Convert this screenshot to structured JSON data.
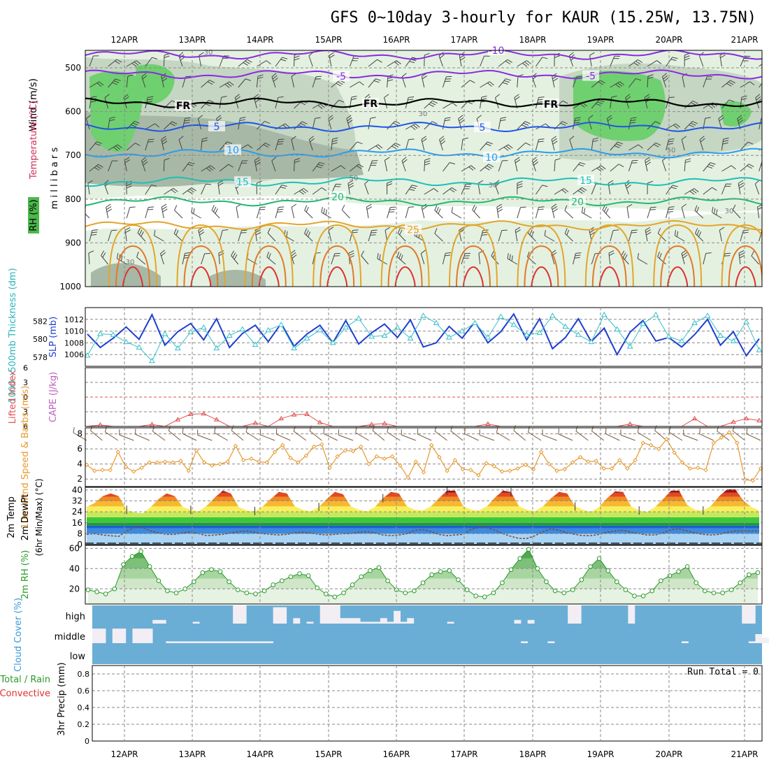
{
  "title": "GFS 0~10day 3-hourly for KAUR (15.25W, 13.75N)",
  "dates": [
    "12APR",
    "13APR",
    "14APR",
    "15APR",
    "16APR",
    "17APR",
    "18APR",
    "19APR",
    "20APR",
    "21APR"
  ],
  "colors": {
    "rh_light": "#e4f1e0",
    "rh_mid": "#c5d6c3",
    "rh_gray": "#a8b8a6",
    "rh_green": "#6fd06f",
    "t_purple": "#8a2be2",
    "t_fr": "#000000",
    "t_5": "#1f55e6",
    "t_10": "#2a9df0",
    "t_15": "#1cc0b8",
    "t_20": "#22b870",
    "t_25": "#e3a52b",
    "t_30": "#e07a28",
    "t_35": "#e03030",
    "slp": "#1f3fcf",
    "thickness": "#33c0c8",
    "lifted": "#e05050",
    "cape": "#c060c0",
    "wind10m": "#e8992e",
    "rh2m": "#2a9a2a",
    "cloud_bg": "#6aaed6",
    "cloud_bar": "#f2eef4"
  },
  "chart_data": [
    {
      "type": "heatmap",
      "name": "upper_air",
      "ylabel_wind": "Wind (m/s)",
      "ylabel_temp": "Temperature (°C)",
      "ylabel_rh": "RH (%)",
      "ylabel_pressure": "m i l l i b a r s",
      "yticks": [
        500,
        600,
        700,
        800,
        900,
        1000
      ],
      "ylim": [
        460,
        1000
      ],
      "isotherms": [
        {
          "label": "-10",
          "level": 470
        },
        {
          "label": "-5",
          "level": 515
        },
        {
          "label": "FR",
          "level": 580
        },
        {
          "label": "5",
          "level": 635
        },
        {
          "label": "10",
          "level": 695
        },
        {
          "label": "15",
          "level": 760
        },
        {
          "label": "20",
          "level": 805
        },
        {
          "label": "25",
          "level": 860
        }
      ],
      "rh_labels": [
        "30",
        "50"
      ]
    },
    {
      "type": "line",
      "name": "slp_thickness",
      "ylabel_slp": "SLP (mb)",
      "ylabel_thickness": "1000~500mb Thickness (dm)",
      "slp_ticks": [
        1006,
        1008,
        1010,
        1012
      ],
      "slp_ylim": [
        1004,
        1014
      ],
      "thickness_ticks": [
        578,
        580,
        582
      ],
      "thickness_ylim": [
        577,
        583.5
      ],
      "slp": [
        1009.5,
        1007.2,
        1008.8,
        1010.7,
        1008.6,
        1012.8,
        1007.6,
        1009.9,
        1011.3,
        1008.5,
        1012.1,
        1007.2,
        1009.6,
        1011.0,
        1008.2,
        1011.3,
        1007.4,
        1009.5,
        1011.0,
        1008.0,
        1011.8,
        1007.8,
        1009.7,
        1011.2,
        1008.9,
        1011.9,
        1007.3,
        1008.0,
        1010.8,
        1008.8,
        1011.6,
        1008.0,
        1009.9,
        1012.9,
        1008.5,
        1012.1,
        1007.0,
        1008.9,
        1012.1,
        1008.2,
        1010.5,
        1006.0,
        1009.8,
        1011.8,
        1008.3,
        1008.9,
        1007.3,
        1009.4,
        1012.0,
        1007.6,
        1009.9,
        1005.8,
        1008.7
      ],
      "thickness": [
        578.2,
        580.6,
        580.5,
        579.7,
        579.1,
        577.6,
        580.6,
        579.0,
        580.8,
        581.3,
        579.0,
        580.4,
        581.1,
        579.4,
        581.0,
        581.6,
        579.0,
        580.1,
        581.0,
        579.6,
        581.3,
        582.3,
        580.3,
        580.4,
        581.3,
        580.1,
        582.6,
        581.8,
        580.2,
        580.9,
        581.8,
        580.2,
        582.5,
        581.6,
        580.5,
        580.7,
        582.6,
        581.4,
        580.5,
        579.7,
        582.7,
        581.1,
        579.2,
        581.7,
        582.7,
        580.3,
        579.8,
        581.8,
        582.6,
        580.4,
        579.8,
        581.9,
        578.8
      ]
    },
    {
      "type": "line",
      "name": "lifted_cape",
      "ylabel_li": "Lifted Index",
      "ylabel_cape": "CAPE (J/kg)",
      "yticks": [
        -6,
        -3,
        0,
        3,
        6
      ],
      "ylim": [
        -6,
        6
      ],
      "lifted_index": [
        6.0,
        5.7,
        6.0,
        6.0,
        6.0,
        5.6,
        6.0,
        4.6,
        3.5,
        3.4,
        4.6,
        6.0,
        6.0,
        5.3,
        6.0,
        4.4,
        3.6,
        3.5,
        5.2,
        6.0,
        6.0,
        6.0,
        5.6,
        5.4,
        6.0,
        6.0,
        6.0,
        6.0,
        6.0,
        6.0,
        6.0,
        5.5,
        6.0,
        6.0,
        6.0,
        6.0,
        6.0,
        6.0,
        6.0,
        6.0,
        6.0,
        6.0,
        5.5,
        6.0,
        6.0,
        6.0,
        6.0,
        4.4,
        6.0,
        6.0,
        5.1,
        4.4,
        4.8
      ]
    },
    {
      "type": "line",
      "name": "wind10m",
      "ylabel": "10m Wind Speed & Barbs (m/s)",
      "yticks": [
        2,
        4,
        6,
        8
      ],
      "ylim": [
        1,
        8.8
      ],
      "values": [
        3.9,
        3.1,
        3.2,
        3.2,
        5.6,
        3.6,
        3.0,
        3.5,
        4.2,
        4.2,
        4.3,
        4.2,
        4.4,
        3.1,
        5.8,
        4.2,
        3.8,
        4.0,
        4.3,
        6.4,
        4.5,
        4.7,
        4.3,
        4.2,
        5.6,
        6.5,
        4.8,
        4.2,
        5.1,
        6.3,
        6.6,
        3.5,
        5.0,
        5.8,
        5.7,
        6.3,
        4.0,
        5.0,
        4.7,
        5.0,
        3.8,
        2.2,
        4.3,
        2.9,
        6.5,
        4.9,
        3.1,
        4.5,
        3.3,
        3.2,
        2.5,
        4.1,
        3.7,
        3.0,
        3.1,
        3.4,
        3.9,
        3.3,
        5.6,
        4.0,
        3.1,
        3.3,
        4.2,
        4.9,
        4.3,
        4.4,
        3.4,
        3.4,
        4.5,
        3.4,
        4.5,
        6.8,
        6.5,
        6.0,
        7.3,
        5.5,
        4.2,
        3.4,
        3.5,
        3.2,
        6.8,
        7.5,
        8.2,
        6.8,
        1.9,
        1.8,
        3.4
      ]
    },
    {
      "type": "area",
      "name": "temp2m",
      "ylabel_temp": "2m Temp",
      "ylabel_dewpt": "2m DewPt",
      "ylabel_minmax": "(6hr Min/Max) (°C)",
      "yticks": [
        0,
        8,
        16,
        24,
        32,
        40
      ],
      "ylim": [
        0,
        42
      ],
      "temp": [
        27.5,
        30.5,
        35.5,
        37.5,
        35.5,
        25.5,
        23.5,
        23.0,
        27.5,
        33.5,
        37.5,
        35.5,
        27.5,
        25.5,
        24.5,
        28.5,
        34.5,
        39.5,
        37.5,
        27.5,
        25.0,
        24.5,
        28.0,
        33.5,
        38.5,
        37.5,
        28.0,
        25.5,
        24.5,
        27.5,
        33.5,
        38.5,
        37.0,
        28.0,
        25.5,
        24.5,
        27.5,
        34.0,
        38.5,
        37.5,
        28.0,
        25.5,
        25.0,
        28.0,
        34.0,
        39.5,
        39.5,
        28.5,
        25.5,
        25.0,
        28.0,
        34.5,
        39.5,
        38.5,
        28.0,
        25.5,
        24.5,
        28.0,
        34.0,
        38.5,
        37.5,
        28.0,
        25.5,
        24.0,
        27.5,
        34.0,
        39.0,
        38.5,
        28.0,
        25.0,
        24.0,
        27.5,
        33.5,
        39.5,
        39.5,
        29.0,
        25.5,
        25.0,
        28.5,
        35.5,
        40.5,
        40.5,
        32.5,
        27.5,
        25.0
      ],
      "dewpt": [
        7.5,
        8.0,
        7.0,
        6.5,
        6.0,
        10.0,
        12.5,
        12.5,
        10.0,
        8.5,
        7.5,
        7.5,
        8.5,
        9.5,
        8.0,
        6.5,
        7.0,
        7.5,
        8.5,
        9.5,
        10.0,
        9.0,
        8.0,
        7.5,
        7.0,
        7.5,
        8.5,
        9.0,
        8.5,
        7.5,
        7.0,
        7.5,
        8.0,
        8.0,
        9.0,
        9.5,
        8.5,
        7.0,
        6.5,
        7.0,
        8.0,
        10.5,
        11.0,
        9.5,
        7.5,
        6.5,
        7.0,
        7.5,
        11.0,
        12.5,
        12.5,
        10.5,
        8.0,
        6.0,
        4.5,
        4.5,
        6.5,
        9.5,
        11.5,
        10.5,
        8.5,
        7.5,
        6.5,
        6.5,
        7.5,
        9.0,
        10.0,
        10.5,
        9.0,
        8.0,
        7.0,
        7.0,
        8.5,
        11.0,
        11.5,
        10.0,
        8.5,
        7.5,
        7.0,
        7.5,
        9.0,
        10.0,
        10.0,
        10.0,
        10.0
      ]
    },
    {
      "type": "area",
      "name": "rh2m",
      "ylabel": "2m RH (%)",
      "yticks": [
        20,
        40,
        60
      ],
      "ylim": [
        5,
        63
      ],
      "values": [
        19,
        17,
        15,
        20,
        44,
        52,
        57,
        42,
        28,
        18,
        16,
        20,
        27,
        36,
        39,
        37,
        27,
        19,
        16,
        15,
        18,
        24,
        28,
        32,
        35,
        33,
        21,
        15,
        12,
        16,
        24,
        32,
        38,
        41,
        28,
        19,
        16,
        18,
        26,
        34,
        37,
        38,
        29,
        19,
        13,
        12,
        16,
        26,
        39,
        50,
        59,
        40,
        27,
        18,
        16,
        19,
        29,
        42,
        50,
        38,
        27,
        19,
        13,
        13,
        18,
        28,
        33,
        37,
        42,
        26,
        18,
        16,
        16,
        19,
        26,
        34,
        36
      ],
      "values_note_x": "evenly spaced 3-hourly"
    },
    {
      "type": "bar",
      "name": "cloud_cover",
      "ylabel": "Cloud Cover (%)",
      "levels": [
        "high",
        "middle",
        "low"
      ],
      "high": [
        0,
        0,
        0,
        0,
        0,
        0,
        0,
        0,
        0,
        20,
        20,
        0,
        0,
        0,
        0,
        10,
        0,
        0,
        0,
        0,
        0,
        100,
        100,
        0,
        0,
        0,
        0,
        90,
        90,
        0,
        30,
        0,
        10,
        0,
        100,
        100,
        100,
        30,
        30,
        30,
        10,
        10,
        10,
        30,
        10,
        70,
        10,
        30,
        0,
        0,
        0,
        0,
        0,
        10,
        0,
        0,
        0,
        0,
        0,
        0,
        0,
        0,
        0,
        20,
        0,
        20,
        0,
        0,
        0,
        0,
        0,
        100,
        100,
        0,
        0,
        0,
        0,
        0,
        0,
        0,
        100,
        0,
        0,
        0,
        0,
        0,
        0,
        0,
        0,
        0,
        0,
        0,
        0,
        0,
        0,
        0,
        0,
        100,
        100,
        0
      ],
      "middle": [
        80,
        80,
        0,
        80,
        80,
        0,
        80,
        80,
        80,
        0,
        0,
        10,
        10,
        10,
        10,
        10,
        10,
        10,
        10,
        10,
        10,
        10,
        10,
        10,
        10,
        10,
        10,
        0,
        0,
        0,
        0,
        0,
        0,
        0,
        0,
        0,
        0,
        0,
        0,
        0,
        0,
        0,
        0,
        0,
        0,
        0,
        0,
        0,
        0,
        0,
        0,
        0,
        0,
        0,
        0,
        0,
        0,
        0,
        0,
        0,
        0,
        0,
        0,
        0,
        10,
        0,
        0,
        0,
        10,
        0,
        0,
        0,
        0,
        0,
        0,
        0,
        0,
        0,
        0,
        0,
        0,
        0,
        0,
        0,
        0,
        0,
        0,
        0,
        10,
        0,
        0,
        0,
        0,
        0,
        0,
        0,
        0,
        0,
        10,
        50,
        30
      ]
    },
    {
      "type": "bar",
      "name": "precip",
      "ylabel_total": "Total / Rain",
      "ylabel_conv": "Convective",
      "ylabel_precip": "3hr Precip (mm)",
      "yticks": [
        "0",
        "0.2",
        "0.4",
        "0.6",
        "0.8"
      ],
      "ylim": [
        0,
        0.9
      ],
      "run_total": "Run Total = 0",
      "values": []
    }
  ]
}
